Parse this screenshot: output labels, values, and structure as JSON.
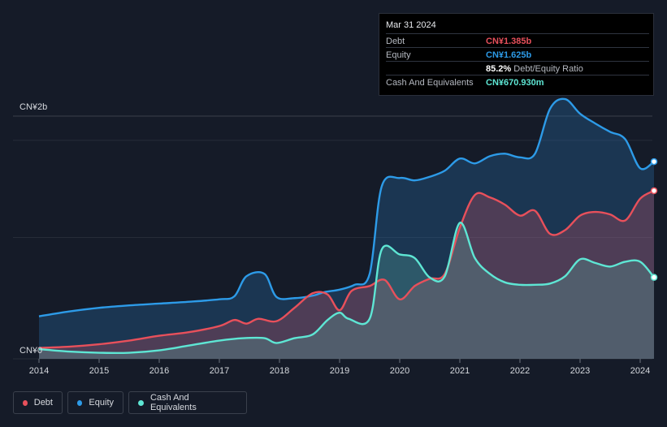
{
  "chart_data": {
    "type": "area",
    "title": "",
    "xlabel": "",
    "ylabel": "",
    "currency_unit": "CN¥",
    "y_top_label": "CN¥2b",
    "y_bottom_label": "CN¥0",
    "ylim": [
      0,
      2.0
    ],
    "xlim": [
      2014.0,
      2024.23
    ],
    "x_ticks": [
      "2014",
      "2015",
      "2016",
      "2017",
      "2018",
      "2019",
      "2020",
      "2021",
      "2022",
      "2023",
      "2024"
    ],
    "grid": true,
    "legend_position": "bottom-left",
    "series": [
      {
        "name": "Equity",
        "color": "#2d9be8",
        "x": [
          2014.0,
          2014.5,
          2015.0,
          2015.5,
          2016.0,
          2016.5,
          2017.0,
          2017.25,
          2017.45,
          2017.75,
          2017.95,
          2018.25,
          2018.55,
          2018.75,
          2019.0,
          2019.25,
          2019.5,
          2019.7,
          2020.0,
          2020.25,
          2020.5,
          2020.75,
          2021.0,
          2021.25,
          2021.5,
          2021.75,
          2022.0,
          2022.25,
          2022.5,
          2022.75,
          2023.0,
          2023.25,
          2023.5,
          2023.75,
          2024.0,
          2024.23
        ],
        "values": [
          0.35,
          0.39,
          0.42,
          0.44,
          0.455,
          0.47,
          0.49,
          0.515,
          0.68,
          0.7,
          0.51,
          0.5,
          0.52,
          0.55,
          0.57,
          0.61,
          0.7,
          1.42,
          1.49,
          1.47,
          1.5,
          1.55,
          1.65,
          1.61,
          1.67,
          1.69,
          1.66,
          1.69,
          2.06,
          2.14,
          2.02,
          1.94,
          1.87,
          1.81,
          1.57,
          1.625
        ]
      },
      {
        "name": "Debt",
        "color": "#e8505b",
        "x": [
          2014.0,
          2014.5,
          2015.0,
          2015.5,
          2016.0,
          2016.5,
          2017.0,
          2017.25,
          2017.45,
          2017.65,
          2017.95,
          2018.25,
          2018.55,
          2018.8,
          2019.0,
          2019.2,
          2019.5,
          2019.75,
          2020.0,
          2020.25,
          2020.5,
          2020.75,
          2021.0,
          2021.25,
          2021.5,
          2021.75,
          2022.0,
          2022.25,
          2022.5,
          2022.75,
          2023.0,
          2023.25,
          2023.5,
          2023.75,
          2024.0,
          2024.23
        ],
        "values": [
          0.09,
          0.1,
          0.12,
          0.15,
          0.19,
          0.22,
          0.27,
          0.32,
          0.29,
          0.33,
          0.31,
          0.42,
          0.54,
          0.53,
          0.4,
          0.56,
          0.6,
          0.65,
          0.49,
          0.6,
          0.66,
          0.7,
          1.08,
          1.35,
          1.33,
          1.27,
          1.18,
          1.22,
          1.03,
          1.06,
          1.18,
          1.21,
          1.19,
          1.14,
          1.32,
          1.385
        ]
      },
      {
        "name": "Cash And Equivalents",
        "color": "#5ee6d4",
        "x": [
          2014.0,
          2014.5,
          2015.0,
          2015.5,
          2016.0,
          2016.5,
          2017.0,
          2017.4,
          2017.75,
          2017.95,
          2018.25,
          2018.55,
          2018.8,
          2019.0,
          2019.15,
          2019.5,
          2019.7,
          2020.0,
          2020.25,
          2020.5,
          2020.75,
          2021.0,
          2021.25,
          2021.5,
          2021.75,
          2022.0,
          2022.25,
          2022.5,
          2022.75,
          2023.0,
          2023.25,
          2023.5,
          2023.75,
          2024.0,
          2024.23
        ],
        "values": [
          0.08,
          0.06,
          0.05,
          0.05,
          0.07,
          0.11,
          0.15,
          0.17,
          0.17,
          0.13,
          0.17,
          0.2,
          0.32,
          0.38,
          0.33,
          0.33,
          0.9,
          0.86,
          0.83,
          0.67,
          0.68,
          1.12,
          0.83,
          0.7,
          0.63,
          0.61,
          0.61,
          0.62,
          0.68,
          0.82,
          0.79,
          0.76,
          0.8,
          0.8,
          0.671
        ]
      }
    ]
  },
  "tooltip": {
    "date": "Mar 31 2024",
    "rows": {
      "debt": {
        "label": "Debt",
        "value": "CN¥1.385b",
        "color": "#e8505b"
      },
      "equity": {
        "label": "Equity",
        "value": "CN¥1.625b",
        "color": "#2d9be8"
      },
      "ratio": {
        "value": "85.2%",
        "label": "Debt/Equity Ratio"
      },
      "cash": {
        "label": "Cash And Equivalents",
        "value": "CN¥670.930m",
        "color": "#5ee6d4"
      }
    }
  },
  "legend": {
    "debt": "Debt",
    "equity": "Equity",
    "cash": "Cash And Equivalents"
  }
}
